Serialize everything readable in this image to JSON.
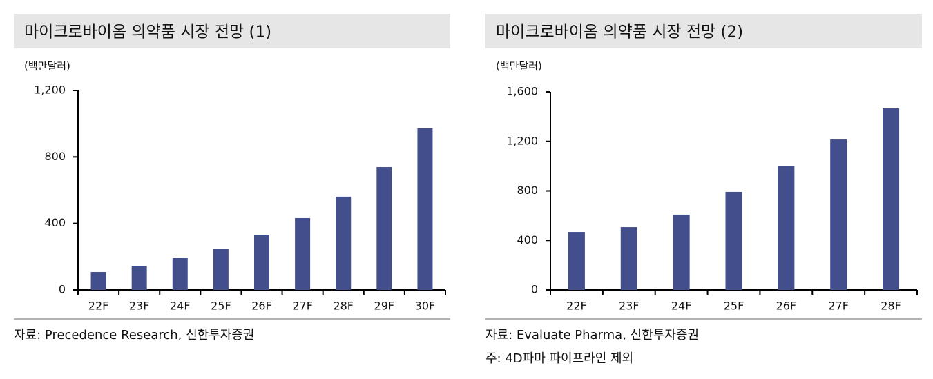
{
  "chart_data": [
    {
      "type": "bar",
      "title": "마이크로바이옴 의약품 시장 전망 (1)",
      "unit_label": "(백만달러)",
      "categories": [
        "22F",
        "23F",
        "24F",
        "25F",
        "26F",
        "27F",
        "28F",
        "29F",
        "30F"
      ],
      "values": [
        108,
        145,
        191,
        249,
        332,
        432,
        561,
        739,
        972
      ],
      "color": "#434f8c",
      "ylim": [
        0,
        1200
      ],
      "yticks": [
        0,
        400,
        800,
        {
          "value": 1200,
          "label": "1,200"
        }
      ],
      "source": "자료: Precedence Research, 신한투자증권"
    },
    {
      "type": "bar",
      "title": "마이크로바이옴 의약품 시장 전망 (2)",
      "unit_label": "(백만달러)",
      "categories": [
        "22F",
        "23F",
        "24F",
        "25F",
        "26F",
        "27F",
        "28F"
      ],
      "values": [
        468,
        507,
        608,
        792,
        1003,
        1215,
        1466
      ],
      "color": "#434f8c",
      "ylim": [
        0,
        1600
      ],
      "yticks": [
        0,
        400,
        800,
        {
          "value": 1200,
          "label": "1,200"
        },
        {
          "value": 1600,
          "label": "1,600"
        }
      ],
      "source": "자료: Evaluate Pharma, 신한투자증권",
      "note": "주: 4D파마 파이프라인 제외"
    }
  ]
}
